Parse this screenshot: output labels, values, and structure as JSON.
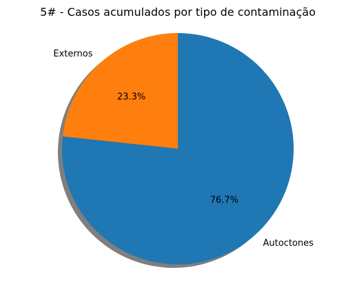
{
  "chart_data": {
    "type": "pie",
    "title": "5# - Casos acumulados por tipo de contaminação",
    "categories": [
      "Externos",
      "Autoctones"
    ],
    "values": [
      23.3,
      76.7
    ],
    "percent_labels": [
      "23.3%",
      "76.7%"
    ],
    "colors": [
      "#ff7f0e",
      "#1f77b4"
    ],
    "start_angle_deg": 90,
    "direction": "counterclockwise",
    "shadow": true,
    "legend": "none"
  }
}
